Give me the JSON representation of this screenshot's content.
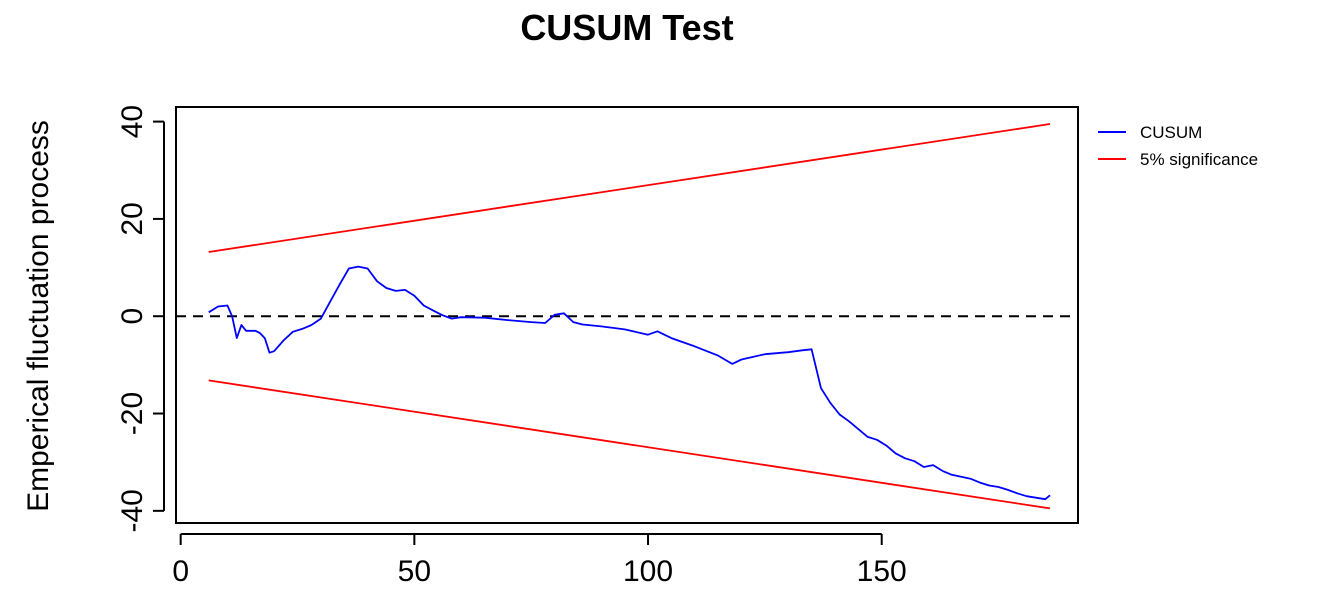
{
  "chart_data": {
    "type": "line",
    "title": "CUSUM Test",
    "xlabel": "",
    "ylabel": "Emperical fluctuation process",
    "xlim": [
      -1,
      192
    ],
    "ylim": [
      -42.5,
      43
    ],
    "xticks": [
      0,
      50,
      100,
      150
    ],
    "yticks": [
      -40,
      -20,
      0,
      20,
      40
    ],
    "xtick_labels": [
      "0",
      "50",
      "100",
      "150"
    ],
    "ytick_labels": [
      "-40",
      "-20",
      "0",
      "20",
      "40"
    ],
    "legend_position": "right-outside",
    "grid": false,
    "reference_line": {
      "y": 0,
      "style": "dashed",
      "color": "#000000"
    },
    "series": [
      {
        "name": "CUSUM",
        "color": "#0000ff",
        "x": [
          6,
          8,
          10,
          11,
          12,
          13,
          14,
          15,
          16,
          17,
          18,
          19,
          20,
          22,
          24,
          26,
          28,
          30,
          32,
          34,
          36,
          38,
          40,
          42,
          44,
          46,
          48,
          50,
          52,
          54,
          56,
          58,
          60,
          65,
          70,
          75,
          78,
          80,
          82,
          84,
          86,
          90,
          95,
          100,
          102,
          105,
          110,
          115,
          118,
          120,
          125,
          130,
          133,
          135,
          137,
          139,
          141,
          143,
          145,
          147,
          149,
          151,
          153,
          155,
          157,
          159,
          161,
          163,
          165,
          167,
          169,
          171,
          173,
          175,
          177,
          179,
          181,
          183,
          185,
          186
        ],
        "values": [
          0.8,
          2,
          2.2,
          0,
          -4.5,
          -1.8,
          -3,
          -3,
          -3,
          -3.5,
          -4.5,
          -7.5,
          -7.2,
          -5,
          -3.2,
          -2.6,
          -1.8,
          -0.5,
          3,
          6.5,
          9.8,
          10.2,
          9.8,
          7.2,
          5.8,
          5.2,
          5.4,
          4.2,
          2.2,
          1.2,
          0.2,
          -0.5,
          -0.2,
          -0.3,
          -0.8,
          -1.2,
          -1.4,
          0.3,
          0.6,
          -1.2,
          -1.7,
          -2.1,
          -2.7,
          -3.8,
          -3.1,
          -4.5,
          -6.2,
          -8.1,
          -9.8,
          -8.9,
          -7.8,
          -7.4,
          -7,
          -6.8,
          -14.8,
          -17.8,
          -20.2,
          -21.6,
          -23.2,
          -24.8,
          -25.4,
          -26.6,
          -28.2,
          -29.2,
          -29.8,
          -31,
          -30.6,
          -31.8,
          -32.6,
          -33,
          -33.4,
          -34.2,
          -34.8,
          -35.1,
          -35.7,
          -36.4,
          -37,
          -37.3,
          -37.6,
          -36.8
        ]
      },
      {
        "name": "5% significance",
        "color": "#ff0000",
        "x": [
          6,
          186
        ],
        "values": [
          13.2,
          39.5
        ]
      },
      {
        "name": "5% significance",
        "color": "#ff0000",
        "x": [
          6,
          186
        ],
        "values": [
          -13.2,
          -39.5
        ]
      }
    ],
    "legend": [
      {
        "label": "CUSUM",
        "color": "#0000ff"
      },
      {
        "label": "5% significance",
        "color": "#ff0000"
      }
    ]
  }
}
